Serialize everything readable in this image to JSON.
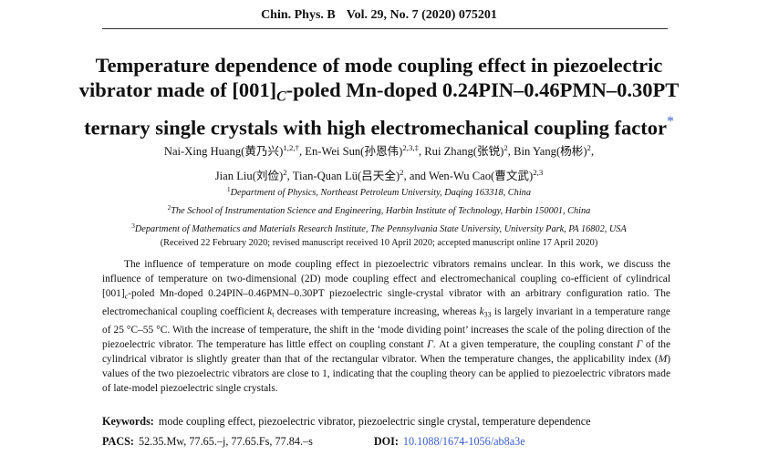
{
  "header": [
    [
      {
        "text": "Chin. Phys. B",
        "style": "bold"
      },
      {
        "text": "Vol. 29, No. 7 (2020) 075201",
        "style": "bold"
      }
    ]
  ],
  "title": [
    [
      {
        "text": "Temperature dependence of mode coupling effect in piezoelectric"
      }
    ],
    [
      {
        "text": "vibrator made of [001]"
      },
      {
        "text": "C",
        "style": "isub"
      },
      {
        "text": "-poled Mn-doped 0.24PIN–0.46PMN–0.30PT"
      }
    ],
    [
      {
        "text": "ternary single crystals with high electromechanical coupling factor"
      },
      {
        "text": "*",
        "style": "star"
      }
    ]
  ],
  "authors": [
    [
      {
        "text": "Nai-Xing Huang(黄乃兴)"
      },
      {
        "text": "1,2,†",
        "style": "sup"
      },
      {
        "text": ", En-Wei Sun(孙恩伟)"
      },
      {
        "text": "2,3,‡",
        "style": "sup"
      },
      {
        "text": ", Rui Zhang(张锐)"
      },
      {
        "text": "2",
        "style": "sup"
      },
      {
        "text": ", Bin Yang(杨彬)"
      },
      {
        "text": "2",
        "style": "sup"
      },
      {
        "text": ","
      }
    ],
    [
      {
        "text": "Jian Liu(刘俭)"
      },
      {
        "text": "2",
        "style": "sup"
      },
      {
        "text": ", Tian-Quan Lü(吕天全)"
      },
      {
        "text": "2",
        "style": "sup"
      },
      {
        "text": ", and Wen-Wu Cao(曹文武)"
      },
      {
        "text": "2,3",
        "style": "sup"
      }
    ]
  ],
  "affiliations": [
    [
      {
        "text": "1",
        "style": "sup"
      },
      {
        "text": "Department of Physics, Northeast Petroleum University, Daqing 163318, China",
        "style": "italic"
      }
    ],
    [
      {
        "text": "2",
        "style": "sup"
      },
      {
        "text": "The School of Instrumentation Science and Engineering, Harbin Institute of Technology, Harbin 150001, China",
        "style": "italic"
      }
    ],
    [
      {
        "text": "3",
        "style": "sup"
      },
      {
        "text": "Department of Mathematics and Materials Research Institute, The Pennsylvania State University, University Park, PA 16802, USA",
        "style": "italic"
      }
    ]
  ],
  "received": [
    [
      {
        "text": "(Received 22 February 2020; revised manuscript received 10 April 2020; accepted manuscript online 17 April 2020)"
      }
    ]
  ],
  "abstract": [
    [
      {
        "text": "The influence of temperature on mode coupling effect in piezoelectric vibrators remains unclear. In this work, we discuss the influence of temperature on two-dimensional (2D) mode coupling effect and electromechanical coupling co-efficient of cylindrical [001]"
      },
      {
        "text": "c",
        "style": "isub"
      },
      {
        "text": "-poled Mn-doped 0.24PIN–0.46PMN–0.30PT piezoelectric single-crystal vibrator with an arbitrary configuration ratio. The electromechanical coupling coefficient "
      },
      {
        "text": "k",
        "style": "italic"
      },
      {
        "text": "t",
        "style": "sub"
      },
      {
        "text": " decreases with temperature increasing, whereas "
      },
      {
        "text": "k",
        "style": "italic"
      },
      {
        "text": "33",
        "style": "sub"
      },
      {
        "text": " is largely invariant in a temperature range of 25 °C–55 °C. With the increase of temperature, the shift in the ‘mode dividing point’ increases the scale of the poling direction of the piezoelectric vibrator. The temperature has little effect on coupling constant "
      },
      {
        "text": "Γ",
        "style": "italic"
      },
      {
        "text": ". At a given temperature, the coupling constant "
      },
      {
        "text": "Γ",
        "style": "italic"
      },
      {
        "text": " of the cylindrical vibrator is slightly greater than that of the rectangular vibrator. When the temperature changes, the applicability index ("
      },
      {
        "text": "M",
        "style": "italic"
      },
      {
        "text": ") values of the two piezoelectric vibrators are close to 1, indicating that the coupling theory can be applied to piezoelectric vibrators made of late-model piezoelectric single crystals."
      }
    ]
  ],
  "keywords": [
    [
      {
        "text": "Keywords:",
        "style": "bold"
      },
      {
        "text": "mode coupling effect, piezoelectric vibrator, piezoelectric single crystal, temperature dependence"
      }
    ]
  ],
  "pacs": [
    [
      {
        "text": "PACS:",
        "style": "bold"
      },
      {
        "text": "52.35.Mw, 77.65.–j, 77.65.Fs, 77.84.–s"
      },
      {
        "text": "DOI:",
        "style": "doilabel"
      },
      {
        "text": "10.1088/1674-1056/ab8a3e",
        "style": "link"
      }
    ]
  ]
}
